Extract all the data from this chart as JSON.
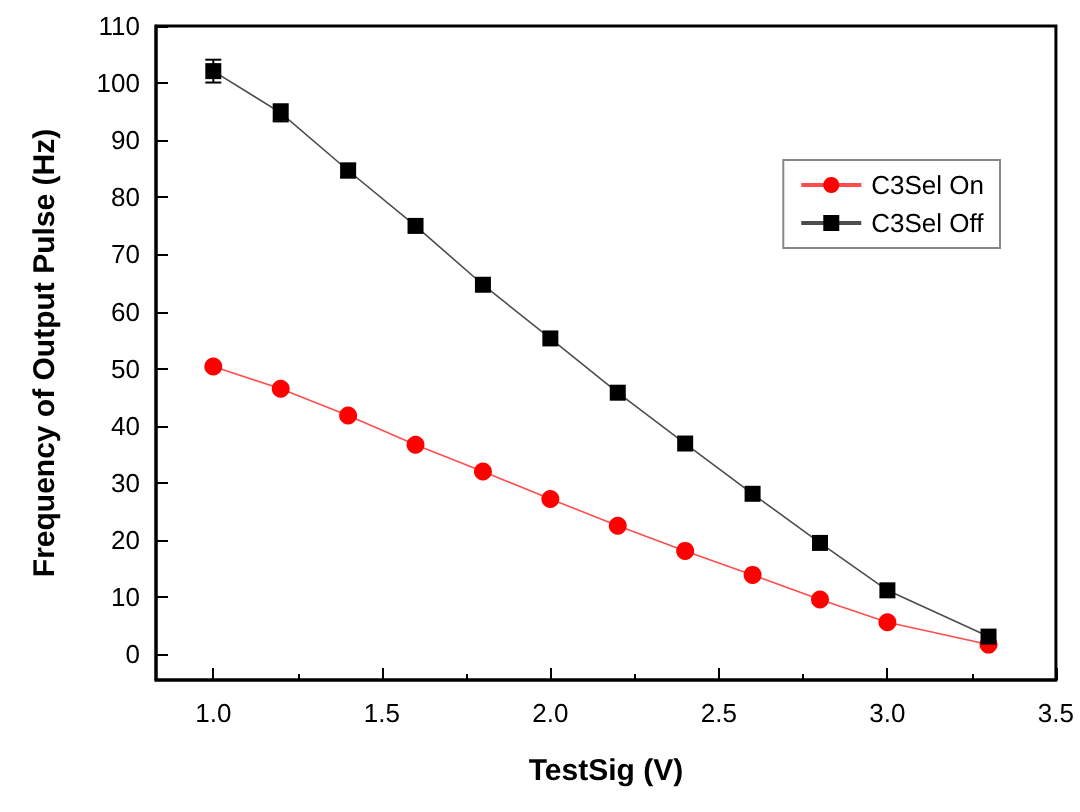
{
  "chart_data": {
    "type": "line",
    "xlabel": "TestSig (V)",
    "ylabel": "Frequency of Output Pulse (Hz)",
    "x": [
      1.0,
      1.2,
      1.4,
      1.6,
      1.8,
      2.0,
      2.2,
      2.4,
      2.6,
      2.8,
      3.0,
      3.3
    ],
    "series": [
      {
        "name": "C3Sel On",
        "color": "#ff0000",
        "marker": "circle",
        "values": [
          50.4,
          46.5,
          41.8,
          36.7,
          32.0,
          27.2,
          22.5,
          18.1,
          13.9,
          9.6,
          5.6,
          1.7
        ]
      },
      {
        "name": "C3Sel Off",
        "color": "#000000",
        "marker": "square",
        "values": [
          102.1,
          94.8,
          84.7,
          75.0,
          64.7,
          55.3,
          45.8,
          36.9,
          28.1,
          19.5,
          11.2,
          3.1
        ],
        "errors": [
          2,
          1.5,
          1.2,
          null,
          null,
          null,
          null,
          null,
          null,
          null,
          null,
          null
        ]
      }
    ],
    "xlim": [
      0.83,
      3.5
    ],
    "xticks": [
      {
        "value": 1,
        "label": "1.0"
      },
      1.5,
      {
        "value": 2,
        "label": "2.0"
      },
      2.5,
      {
        "value": 3,
        "label": "3.0"
      },
      3.5
    ],
    "ylim": [
      -4.5,
      110
    ],
    "yticks": [
      0,
      10,
      20,
      30,
      40,
      50,
      60,
      70,
      80,
      90,
      100,
      110
    ],
    "legend": "top right"
  }
}
